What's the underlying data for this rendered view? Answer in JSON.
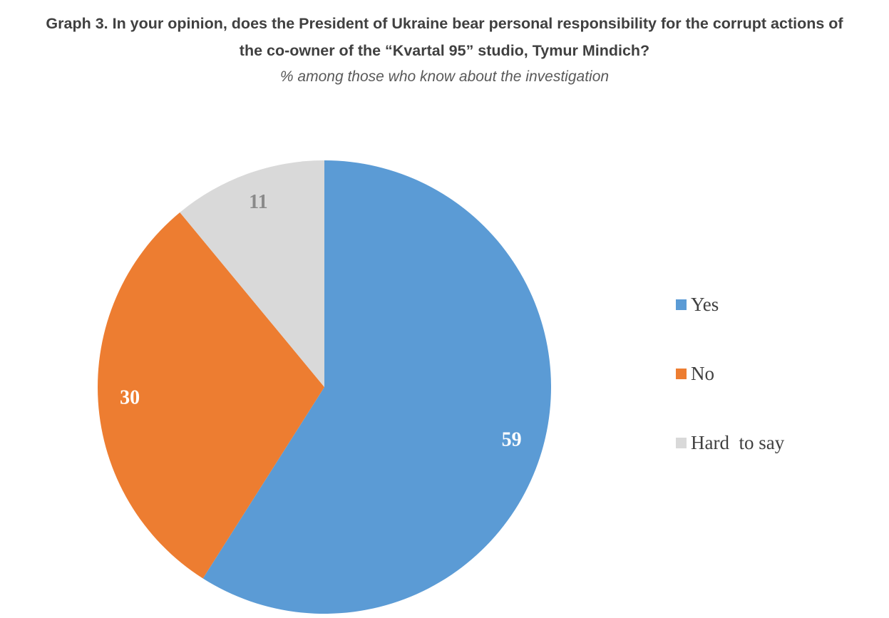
{
  "header": {
    "title": "Graph 3. In your opinion, does the President of Ukraine bear personal responsibility for the corrupt actions of the co-owner of the “Kvartal 95” studio, Tymur Mindich?",
    "subtitle": "% among those who know about the investigation"
  },
  "chart_data": {
    "type": "pie",
    "title": "Graph 3. In your opinion, does the President of Ukraine bear personal responsibility for the corrupt actions of the co-owner of the “Kvartal 95” studio, Tymur Mindich?",
    "subtitle": "% among those who know about the investigation",
    "start_angle_deg": -90,
    "direction": "clockwise",
    "legend_position": "right",
    "slices": [
      {
        "label": "Yes",
        "value": 59,
        "color": "#5B9BD5",
        "label_color": "#ffffff"
      },
      {
        "label": "No",
        "value": 30,
        "color": "#ED7D31",
        "label_color": "#ffffff"
      },
      {
        "label": "Hard  to say",
        "value": 11,
        "color": "#D9D9D9",
        "label_color": "#8a8a8a"
      }
    ]
  }
}
